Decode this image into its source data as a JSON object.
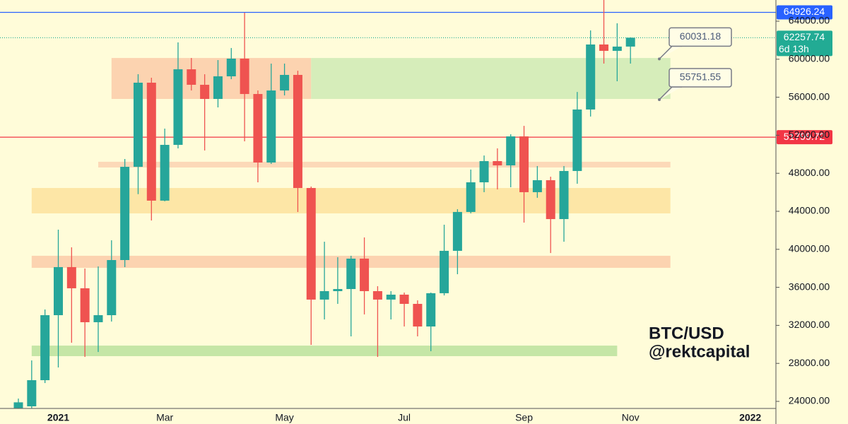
{
  "chart_data": {
    "type": "candlestick",
    "categories": [
      null,
      null,
      null,
      "2021",
      null,
      null,
      null,
      null,
      null,
      null,
      null,
      "Mar",
      null,
      null,
      null,
      null,
      null,
      null,
      null,
      null,
      "May",
      null,
      null,
      null,
      null,
      null,
      null,
      null,
      null,
      "Jul",
      null,
      null,
      null,
      null,
      null,
      null,
      null,
      null,
      "Sep",
      null,
      null,
      null,
      null,
      null,
      null,
      null,
      "Nov",
      null,
      null,
      null,
      null,
      null,
      null,
      null,
      null,
      "2022",
      null
    ],
    "open": [
      23300,
      23480,
      26230,
      33070,
      38130,
      35900,
      32330,
      33070,
      38870,
      48680,
      57530,
      45120,
      50990,
      58940,
      57310,
      55820,
      58200,
      60060,
      56340,
      49130,
      56710,
      58350,
      46450,
      34710,
      35600,
      35820,
      39020,
      35600,
      34710,
      35230,
      34260,
      31880,
      35380,
      39840,
      43930,
      47050,
      49280,
      48830,
      51880,
      46010,
      47270,
      43180,
      48240,
      54710,
      61550,
      60880,
      61330,
      null,
      null,
      null,
      null,
      null,
      null,
      null,
      null,
      null,
      null
    ],
    "high": [
      24300,
      28310,
      33670,
      42070,
      40210,
      37980,
      38200,
      40950,
      49500,
      58420,
      58050,
      52700,
      61770,
      60130,
      58420,
      59910,
      61180,
      64890,
      56710,
      59540,
      59540,
      58790,
      46600,
      40800,
      39170,
      39320,
      41250,
      36120,
      35600,
      35450,
      34630,
      35450,
      42590,
      44220,
      48390,
      49870,
      50620,
      52100,
      52990,
      48760,
      47640,
      48760,
      56560,
      63030,
      66900,
      63780,
      62300,
      null,
      null,
      null,
      null,
      null,
      null,
      null,
      null,
      null,
      null
    ],
    "low": [
      23270,
      23300,
      25930,
      27570,
      30170,
      28680,
      29200,
      32400,
      38130,
      45800,
      43030,
      45050,
      50620,
      56710,
      50400,
      54930,
      57900,
      51360,
      47050,
      48980,
      56190,
      43930,
      29950,
      32620,
      34260,
      30840,
      33150,
      28680,
      32620,
      31880,
      30840,
      29280,
      35150,
      37380,
      43780,
      46010,
      46300,
      46530,
      42810,
      45420,
      39610,
      40800,
      46900,
      53970,
      59540,
      57680,
      59540,
      null,
      null,
      null,
      null,
      null,
      null,
      null,
      null,
      null,
      null
    ],
    "close": [
      23900,
      26230,
      33070,
      38130,
      35900,
      32330,
      33070,
      38870,
      48680,
      57530,
      45120,
      50990,
      58940,
      57310,
      55820,
      58200,
      60060,
      56340,
      49130,
      56710,
      58350,
      46450,
      34710,
      35600,
      35820,
      39020,
      35600,
      34710,
      35230,
      34260,
      31880,
      35380,
      39840,
      43930,
      47050,
      49280,
      48830,
      51880,
      46010,
      47270,
      43180,
      48240,
      54710,
      61550,
      60880,
      61330,
      62257.74,
      null,
      null,
      null,
      null,
      null,
      null,
      null,
      null,
      null,
      null
    ],
    "up_color": "#26a69a",
    "down_color": "#ef5350",
    "ylim": [
      23257,
      66230
    ],
    "yticks": [
      {
        "value": 24000,
        "label": "24000.00"
      },
      {
        "value": 28000,
        "label": "28000.00"
      },
      {
        "value": 32000,
        "label": "32000.00"
      },
      {
        "value": 36000,
        "label": "36000.00"
      },
      {
        "value": 40000,
        "label": "40000.00"
      },
      {
        "value": 44000,
        "label": "44000.00"
      },
      {
        "value": 48000,
        "label": "48000.00"
      },
      {
        "value": 52000,
        "label": "52000.00"
      },
      {
        "value": 56000,
        "label": "56000.00"
      },
      {
        "value": 60000,
        "label": "60000.00"
      },
      {
        "value": 64000,
        "label": "64000.00"
      }
    ],
    "grid": false,
    "zones": [
      {
        "x": [
          7,
          22
        ],
        "y": [
          55820,
          60130
        ],
        "color": "#fcd3b0"
      },
      {
        "x": [
          22,
          49
        ],
        "y": [
          55820,
          60130
        ],
        "color": "#d6edba"
      },
      {
        "x": [
          6,
          49
        ],
        "y": [
          48610,
          49210
        ],
        "color": "#fcd9b8"
      },
      {
        "x": [
          1,
          49
        ],
        "y": [
          43780,
          46450
        ],
        "color": "#fde6a6"
      },
      {
        "x": [
          1,
          49
        ],
        "y": [
          38050,
          39320
        ],
        "color": "#fcd3b0"
      },
      {
        "x": [
          1,
          45
        ],
        "y": [
          28760,
          29870
        ],
        "color": "#c5e6a6"
      }
    ],
    "price_lines": [
      {
        "value": 64926.24,
        "color": "#2962ff",
        "style": "solid"
      },
      {
        "value": 62257.74,
        "color": "#22ab94",
        "style": "dotted",
        "countdown": "6d 13h"
      },
      {
        "value": 51799.72,
        "color": "#f23645",
        "style": "solid"
      }
    ],
    "callouts": [
      {
        "value": 60031.18
      },
      {
        "value": 55751.55
      }
    ],
    "annotations": [
      "BTC/USD",
      "@rektcapital"
    ]
  }
}
